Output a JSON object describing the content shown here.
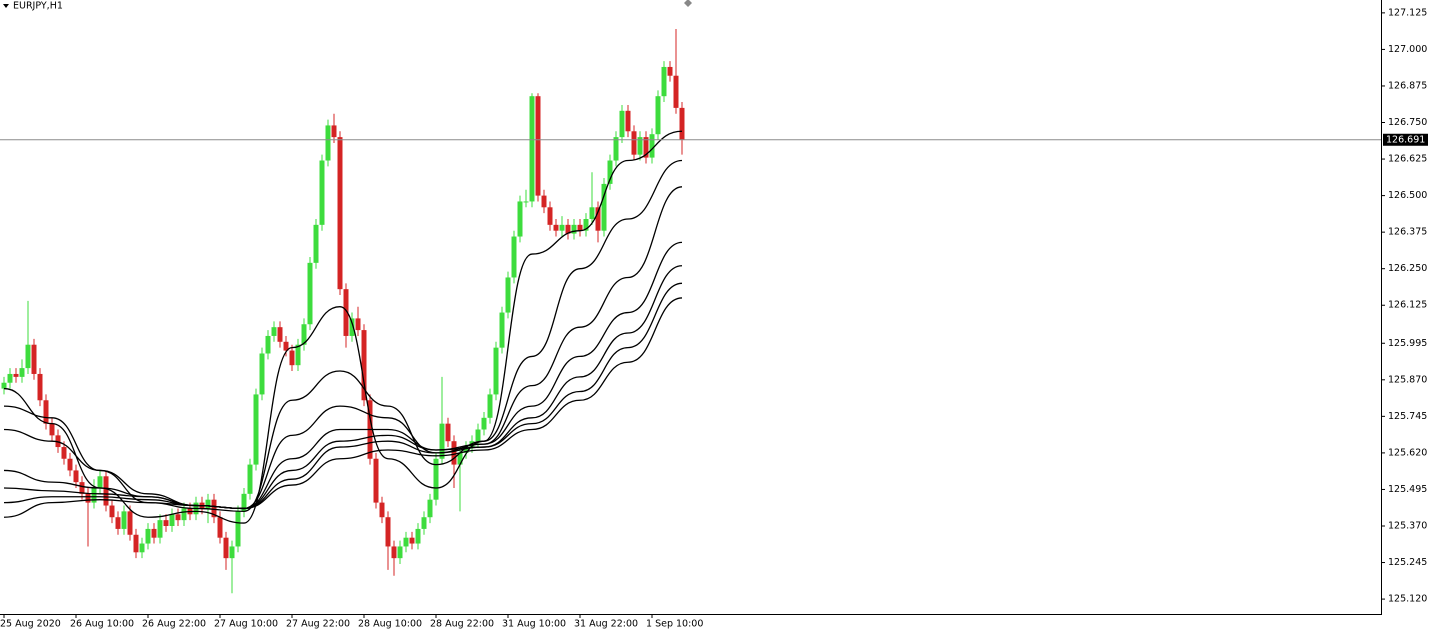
{
  "chart_data": {
    "type": "candlestick",
    "title": "EURJPY,H1",
    "categories": [
      "25 Aug 2020",
      null,
      null,
      null,
      null,
      null,
      null,
      null,
      null,
      null,
      null,
      null,
      "26 Aug 10:00",
      null,
      null,
      null,
      null,
      null,
      null,
      null,
      null,
      null,
      null,
      null,
      "26 Aug 22:00",
      null,
      null,
      null,
      null,
      null,
      null,
      null,
      null,
      null,
      null,
      null,
      "27 Aug 10:00",
      null,
      null,
      null,
      null,
      null,
      null,
      null,
      null,
      null,
      null,
      null,
      "27 Aug 22:00",
      null,
      null,
      null,
      null,
      null,
      null,
      null,
      null,
      null,
      null,
      null,
      "28 Aug 10:00",
      null,
      null,
      null,
      null,
      null,
      null,
      null,
      null,
      null,
      null,
      null,
      "28 Aug 22:00",
      null,
      null,
      null,
      null,
      null,
      null,
      null,
      null,
      null,
      null,
      null,
      "31 Aug 10:00",
      null,
      null,
      null,
      null,
      null,
      null,
      null,
      null,
      null,
      null,
      null,
      "31 Aug 22:00",
      null,
      null,
      null,
      null,
      null,
      null,
      null,
      null,
      null,
      null,
      null,
      "1 Sep 10:00",
      null,
      null,
      null,
      null,
      null
    ],
    "open": [
      125.84,
      125.86,
      125.89,
      125.88,
      125.91,
      125.99,
      125.89,
      125.8,
      125.72,
      125.68,
      125.64,
      125.6,
      125.56,
      125.52,
      125.48,
      125.45,
      125.5,
      125.54,
      125.44,
      125.4,
      125.36,
      125.42,
      125.34,
      125.28,
      125.31,
      125.36,
      125.33,
      125.39,
      125.37,
      125.41,
      125.39,
      125.43,
      125.41,
      125.45,
      125.43,
      125.46,
      125.4,
      125.33,
      125.26,
      125.3,
      125.42,
      125.48,
      125.58,
      125.82,
      125.96,
      126.02,
      126.05,
      126.0,
      125.97,
      125.92,
      125.99,
      126.06,
      126.27,
      126.4,
      126.62,
      126.74,
      126.7,
      126.18,
      126.02,
      126.08,
      126.04,
      125.8,
      125.6,
      125.45,
      125.4,
      125.3,
      125.26,
      125.3,
      125.33,
      125.31,
      125.36,
      125.4,
      125.46,
      125.6,
      125.72,
      125.66,
      125.58,
      125.62,
      125.64,
      125.66,
      125.7,
      125.74,
      125.82,
      125.98,
      126.1,
      126.22,
      126.36,
      126.48,
      126.48,
      126.84,
      126.5,
      126.46,
      126.4,
      126.38,
      126.4,
      126.37,
      126.4,
      126.38,
      126.42,
      126.46,
      126.38,
      126.54,
      126.62,
      126.7,
      126.79,
      126.72,
      126.64,
      126.7,
      126.63,
      126.71,
      126.84,
      126.94,
      126.91,
      126.8
    ],
    "high": [
      125.88,
      125.91,
      125.91,
      125.94,
      126.14,
      126.01,
      125.91,
      125.82,
      125.74,
      125.7,
      125.66,
      125.62,
      125.58,
      125.54,
      125.5,
      125.53,
      125.56,
      125.56,
      125.46,
      125.42,
      125.44,
      125.44,
      125.36,
      125.33,
      125.38,
      125.38,
      125.41,
      125.41,
      125.43,
      125.43,
      125.45,
      125.45,
      125.47,
      125.47,
      125.48,
      125.48,
      125.42,
      125.35,
      125.32,
      125.44,
      125.5,
      125.6,
      125.84,
      125.98,
      126.04,
      126.07,
      126.07,
      126.02,
      125.99,
      126.01,
      126.08,
      126.29,
      126.42,
      126.64,
      126.76,
      126.78,
      126.72,
      126.2,
      126.1,
      126.12,
      126.06,
      125.82,
      125.62,
      125.47,
      125.42,
      125.32,
      125.32,
      125.35,
      125.35,
      125.38,
      125.42,
      125.48,
      125.62,
      125.88,
      125.74,
      125.68,
      125.64,
      125.66,
      125.68,
      125.72,
      125.76,
      125.84,
      126.0,
      126.12,
      126.24,
      126.38,
      126.5,
      126.52,
      126.85,
      126.85,
      126.52,
      126.48,
      126.42,
      126.43,
      126.42,
      126.42,
      126.42,
      126.44,
      126.58,
      126.48,
      126.56,
      126.64,
      126.72,
      126.81,
      126.81,
      126.74,
      126.72,
      126.72,
      126.73,
      126.86,
      126.96,
      126.96,
      127.07,
      126.82
    ],
    "low": [
      125.82,
      125.84,
      125.86,
      125.86,
      125.89,
      125.87,
      125.78,
      125.7,
      125.66,
      125.62,
      125.58,
      125.54,
      125.5,
      125.46,
      125.3,
      125.43,
      125.48,
      125.42,
      125.38,
      125.34,
      125.34,
      125.32,
      125.26,
      125.26,
      125.29,
      125.31,
      125.31,
      125.35,
      125.35,
      125.37,
      125.37,
      125.39,
      125.39,
      125.41,
      125.38,
      125.38,
      125.31,
      125.22,
      125.14,
      125.28,
      125.4,
      125.46,
      125.56,
      125.8,
      125.94,
      126.0,
      125.98,
      125.95,
      125.9,
      125.9,
      125.97,
      126.04,
      126.25,
      126.38,
      126.6,
      126.68,
      126.16,
      125.98,
      126.0,
      126.02,
      125.78,
      125.58,
      125.43,
      125.38,
      125.22,
      125.2,
      125.24,
      125.28,
      125.29,
      125.29,
      125.34,
      125.38,
      125.44,
      125.58,
      125.64,
      125.5,
      125.42,
      125.6,
      125.62,
      125.64,
      125.68,
      125.72,
      125.8,
      125.96,
      126.08,
      126.2,
      126.34,
      126.46,
      126.46,
      126.48,
      126.44,
      126.38,
      126.36,
      126.36,
      126.35,
      126.35,
      126.36,
      126.36,
      126.4,
      126.34,
      126.36,
      126.52,
      126.6,
      126.68,
      126.7,
      126.62,
      126.62,
      126.61,
      126.61,
      126.69,
      126.82,
      126.89,
      126.78,
      126.64
    ],
    "close": [
      125.86,
      125.89,
      125.88,
      125.91,
      125.99,
      125.89,
      125.8,
      125.72,
      125.68,
      125.64,
      125.6,
      125.56,
      125.52,
      125.48,
      125.45,
      125.5,
      125.54,
      125.44,
      125.4,
      125.36,
      125.42,
      125.34,
      125.28,
      125.31,
      125.36,
      125.33,
      125.39,
      125.37,
      125.41,
      125.39,
      125.43,
      125.41,
      125.45,
      125.43,
      125.46,
      125.4,
      125.33,
      125.26,
      125.3,
      125.42,
      125.48,
      125.58,
      125.82,
      125.96,
      126.02,
      126.05,
      126.0,
      125.97,
      125.92,
      125.99,
      126.06,
      126.27,
      126.4,
      126.62,
      126.74,
      126.7,
      126.18,
      126.02,
      126.08,
      126.04,
      125.8,
      125.6,
      125.45,
      125.4,
      125.3,
      125.26,
      125.3,
      125.33,
      125.31,
      125.36,
      125.4,
      125.46,
      125.6,
      125.72,
      125.66,
      125.58,
      125.62,
      125.64,
      125.66,
      125.7,
      125.74,
      125.82,
      125.98,
      126.1,
      126.22,
      126.36,
      126.48,
      126.48,
      126.84,
      126.5,
      126.46,
      126.4,
      126.38,
      126.4,
      126.37,
      126.4,
      126.38,
      126.42,
      126.46,
      126.38,
      126.54,
      126.62,
      126.7,
      126.79,
      126.72,
      126.64,
      126.7,
      126.63,
      126.71,
      126.84,
      126.94,
      126.91,
      126.8,
      126.691
    ],
    "up_color": "#3ddc3d",
    "down_color": "#d42424",
    "moving_averages": {
      "x": [
        0,
        8,
        16,
        24,
        32,
        40,
        48,
        56,
        64,
        72,
        80,
        88,
        96,
        104,
        113
      ],
      "series": [
        {
          "color": "#000000",
          "values": [
            125.84,
            125.72,
            125.5,
            125.4,
            125.42,
            125.38,
            125.98,
            126.12,
            125.6,
            125.5,
            125.66,
            126.3,
            126.38,
            126.62,
            126.72
          ]
        },
        {
          "color": "#000000",
          "values": [
            125.78,
            125.74,
            125.56,
            125.45,
            125.43,
            125.42,
            125.8,
            125.9,
            125.78,
            125.58,
            125.66,
            125.95,
            126.25,
            126.42,
            126.62
          ]
        },
        {
          "color": "#000000",
          "values": [
            125.7,
            125.66,
            125.56,
            125.48,
            125.44,
            125.43,
            125.68,
            125.78,
            125.74,
            125.62,
            125.65,
            125.85,
            126.05,
            126.22,
            126.53
          ]
        },
        {
          "color": "#000000",
          "values": [
            125.56,
            125.52,
            125.5,
            125.47,
            125.44,
            125.43,
            125.6,
            125.7,
            125.7,
            125.63,
            125.65,
            125.78,
            125.95,
            126.1,
            126.34
          ]
        },
        {
          "color": "#000000",
          "values": [
            125.5,
            125.49,
            125.48,
            125.47,
            125.44,
            125.43,
            125.56,
            125.66,
            125.68,
            125.63,
            125.64,
            125.74,
            125.88,
            126.03,
            126.26
          ]
        },
        {
          "color": "#000000",
          "values": [
            125.45,
            125.47,
            125.47,
            125.46,
            125.44,
            125.43,
            125.53,
            125.64,
            125.66,
            125.62,
            125.64,
            125.72,
            125.83,
            125.98,
            126.2
          ]
        },
        {
          "color": "#000000",
          "values": [
            125.4,
            125.45,
            125.46,
            125.45,
            125.44,
            125.43,
            125.51,
            125.6,
            125.63,
            125.61,
            125.63,
            125.7,
            125.8,
            125.93,
            126.15
          ]
        }
      ]
    },
    "current_price": 126.691,
    "ylim": [
      125.069,
      127.169
    ],
    "yticks": [
      {
        "value": 125.12,
        "label": "125.120"
      },
      125.245,
      {
        "value": 125.37,
        "label": "125.370"
      },
      125.495,
      {
        "value": 125.62,
        "label": "125.620"
      },
      125.745,
      {
        "value": 125.87,
        "label": "125.870"
      },
      125.995,
      126.125,
      {
        "value": 126.25,
        "label": "126.250"
      },
      126.375,
      {
        "value": 126.5,
        "label": "126.500"
      },
      126.625,
      {
        "value": 126.75,
        "label": "126.750"
      },
      126.875,
      {
        "value": 127,
        "label": "127.000"
      },
      127.125
    ]
  }
}
